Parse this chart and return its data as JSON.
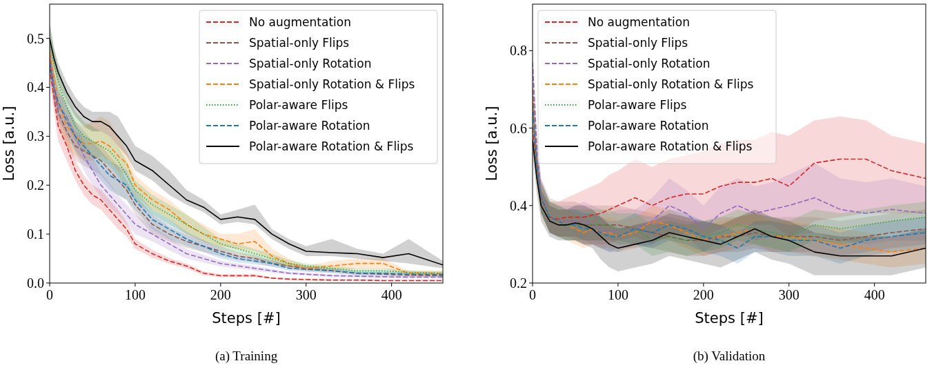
{
  "chart_data": [
    {
      "type": "line",
      "title": "(a) Training",
      "xlabel": "Steps [#]",
      "ylabel": "Loss [a.u.]",
      "xlim": [
        0,
        460
      ],
      "ylim": [
        0,
        0.57
      ],
      "xticks": [
        0,
        100,
        200,
        300,
        400
      ],
      "yticks": [
        {
          "value": 0,
          "label": "0.0"
        },
        0.1,
        0.2,
        0.3,
        0.4,
        0.5
      ],
      "legend": "top right",
      "x": [
        0,
        5,
        10,
        20,
        30,
        40,
        50,
        60,
        70,
        80,
        90,
        100,
        120,
        140,
        160,
        180,
        200,
        220,
        240,
        260,
        280,
        300,
        330,
        360,
        390,
        420,
        460
      ],
      "series": [
        {
          "name": "No augmentation",
          "color": "#d62728",
          "line_style": "dashed",
          "values": [
            0.44,
            0.38,
            0.32,
            0.28,
            0.23,
            0.2,
            0.18,
            0.17,
            0.15,
            0.13,
            0.11,
            0.08,
            0.06,
            0.045,
            0.035,
            0.02,
            0.015,
            0.015,
            0.015,
            0.01,
            0.008,
            0.007,
            0.006,
            0.006,
            0.005,
            0.005,
            0.005
          ],
          "lower": [
            0.41,
            0.35,
            0.29,
            0.25,
            0.21,
            0.18,
            0.16,
            0.15,
            0.13,
            0.11,
            0.095,
            0.07,
            0.052,
            0.039,
            0.03,
            0.016,
            0.012,
            0.012,
            0.012,
            0.008,
            0.006,
            0.005,
            0.004,
            0.004,
            0.003,
            0.003,
            0.003
          ],
          "upper": [
            0.47,
            0.41,
            0.35,
            0.31,
            0.25,
            0.22,
            0.2,
            0.19,
            0.17,
            0.15,
            0.125,
            0.09,
            0.068,
            0.051,
            0.04,
            0.024,
            0.018,
            0.018,
            0.018,
            0.012,
            0.01,
            0.009,
            0.008,
            0.008,
            0.007,
            0.007,
            0.007
          ]
        },
        {
          "name": "Spatial-only Flips",
          "color": "#8c564b",
          "line_style": "dashed",
          "values": [
            0.47,
            0.4,
            0.35,
            0.31,
            0.28,
            0.27,
            0.26,
            0.25,
            0.23,
            0.21,
            0.19,
            0.16,
            0.12,
            0.1,
            0.085,
            0.075,
            0.065,
            0.055,
            0.05,
            0.04,
            0.035,
            0.03,
            0.025,
            0.02,
            0.018,
            0.016,
            0.015
          ],
          "lower": [
            0.44,
            0.37,
            0.32,
            0.28,
            0.25,
            0.24,
            0.23,
            0.22,
            0.2,
            0.18,
            0.17,
            0.14,
            0.1,
            0.085,
            0.072,
            0.063,
            0.055,
            0.047,
            0.042,
            0.034,
            0.03,
            0.025,
            0.021,
            0.017,
            0.015,
            0.013,
            0.012
          ],
          "upper": [
            0.5,
            0.43,
            0.38,
            0.34,
            0.31,
            0.3,
            0.29,
            0.28,
            0.26,
            0.24,
            0.21,
            0.18,
            0.14,
            0.115,
            0.098,
            0.087,
            0.075,
            0.063,
            0.058,
            0.046,
            0.04,
            0.035,
            0.029,
            0.023,
            0.021,
            0.019,
            0.018
          ]
        },
        {
          "name": "Spatial-only Rotation",
          "color": "#9467bd",
          "line_style": "dashed",
          "values": [
            0.46,
            0.4,
            0.36,
            0.34,
            0.3,
            0.26,
            0.23,
            0.2,
            0.18,
            0.16,
            0.14,
            0.12,
            0.1,
            0.08,
            0.06,
            0.05,
            0.04,
            0.035,
            0.03,
            0.025,
            0.02,
            0.018,
            0.015,
            0.014,
            0.013,
            0.012,
            0.012
          ],
          "lower": [
            0.43,
            0.37,
            0.33,
            0.31,
            0.27,
            0.23,
            0.2,
            0.175,
            0.155,
            0.14,
            0.12,
            0.1,
            0.085,
            0.067,
            0.05,
            0.042,
            0.034,
            0.03,
            0.025,
            0.021,
            0.017,
            0.015,
            0.012,
            0.011,
            0.01,
            0.01,
            0.01
          ],
          "upper": [
            0.49,
            0.43,
            0.39,
            0.37,
            0.33,
            0.29,
            0.26,
            0.225,
            0.205,
            0.18,
            0.16,
            0.14,
            0.115,
            0.093,
            0.07,
            0.058,
            0.046,
            0.04,
            0.035,
            0.029,
            0.023,
            0.021,
            0.018,
            0.017,
            0.016,
            0.014,
            0.014
          ]
        },
        {
          "name": "Spatial-only Rotation & Flips",
          "color": "#ff7f0e",
          "line_style": "dashed",
          "values": [
            0.47,
            0.42,
            0.37,
            0.32,
            0.3,
            0.285,
            0.285,
            0.29,
            0.28,
            0.26,
            0.245,
            0.2,
            0.17,
            0.15,
            0.12,
            0.1,
            0.09,
            0.08,
            0.085,
            0.055,
            0.04,
            0.03,
            0.035,
            0.04,
            0.04,
            0.02,
            0.02
          ],
          "lower": [
            0.43,
            0.38,
            0.33,
            0.28,
            0.26,
            0.25,
            0.25,
            0.26,
            0.25,
            0.23,
            0.22,
            0.18,
            0.15,
            0.13,
            0.1,
            0.085,
            0.075,
            0.07,
            0.065,
            0.045,
            0.03,
            0.025,
            0.025,
            0.03,
            0.03,
            0.015,
            0.015
          ],
          "upper": [
            0.51,
            0.46,
            0.41,
            0.36,
            0.33,
            0.32,
            0.33,
            0.34,
            0.33,
            0.3,
            0.27,
            0.22,
            0.19,
            0.17,
            0.14,
            0.12,
            0.1,
            0.1,
            0.11,
            0.07,
            0.05,
            0.035,
            0.045,
            0.05,
            0.05,
            0.025,
            0.025
          ]
        },
        {
          "name": "Polar-aware Flips",
          "color": "#2ca02c",
          "line_style": "dotted",
          "values": [
            0.5,
            0.45,
            0.41,
            0.36,
            0.32,
            0.3,
            0.29,
            0.28,
            0.27,
            0.25,
            0.22,
            0.19,
            0.16,
            0.14,
            0.12,
            0.1,
            0.08,
            0.07,
            0.06,
            0.05,
            0.04,
            0.035,
            0.03,
            0.025,
            0.025,
            0.022,
            0.02
          ],
          "lower": [
            0.47,
            0.42,
            0.38,
            0.33,
            0.29,
            0.27,
            0.26,
            0.25,
            0.24,
            0.22,
            0.19,
            0.17,
            0.14,
            0.12,
            0.1,
            0.085,
            0.07,
            0.06,
            0.05,
            0.04,
            0.033,
            0.03,
            0.025,
            0.02,
            0.02,
            0.018,
            0.016
          ],
          "upper": [
            0.53,
            0.48,
            0.44,
            0.39,
            0.35,
            0.33,
            0.32,
            0.31,
            0.3,
            0.28,
            0.25,
            0.21,
            0.18,
            0.16,
            0.14,
            0.115,
            0.09,
            0.08,
            0.07,
            0.06,
            0.047,
            0.04,
            0.035,
            0.03,
            0.03,
            0.026,
            0.024
          ]
        },
        {
          "name": "Polar-aware Rotation",
          "color": "#1f77b4",
          "line_style": "dashed",
          "values": [
            0.45,
            0.4,
            0.37,
            0.33,
            0.3,
            0.28,
            0.26,
            0.24,
            0.22,
            0.21,
            0.2,
            0.17,
            0.13,
            0.11,
            0.09,
            0.075,
            0.06,
            0.05,
            0.045,
            0.04,
            0.03,
            0.028,
            0.025,
            0.02,
            0.02,
            0.018,
            0.017
          ],
          "lower": [
            0.42,
            0.37,
            0.34,
            0.3,
            0.27,
            0.25,
            0.23,
            0.21,
            0.19,
            0.18,
            0.17,
            0.15,
            0.11,
            0.09,
            0.075,
            0.063,
            0.05,
            0.042,
            0.038,
            0.033,
            0.025,
            0.023,
            0.02,
            0.016,
            0.016,
            0.014,
            0.013
          ],
          "upper": [
            0.48,
            0.43,
            0.4,
            0.36,
            0.33,
            0.31,
            0.29,
            0.27,
            0.25,
            0.24,
            0.23,
            0.19,
            0.15,
            0.13,
            0.105,
            0.087,
            0.07,
            0.058,
            0.052,
            0.047,
            0.035,
            0.033,
            0.03,
            0.024,
            0.024,
            0.022,
            0.021
          ]
        },
        {
          "name": "Polar-aware Rotation & Flips",
          "color": "#000000",
          "line_style": "solid",
          "values": [
            0.5,
            0.46,
            0.43,
            0.39,
            0.36,
            0.34,
            0.33,
            0.33,
            0.32,
            0.3,
            0.28,
            0.25,
            0.23,
            0.2,
            0.17,
            0.155,
            0.13,
            0.135,
            0.13,
            0.1,
            0.08,
            0.065,
            0.062,
            0.06,
            0.052,
            0.06,
            0.037
          ],
          "lower": [
            0.48,
            0.44,
            0.41,
            0.37,
            0.34,
            0.32,
            0.31,
            0.31,
            0.3,
            0.28,
            0.26,
            0.23,
            0.21,
            0.18,
            0.16,
            0.145,
            0.12,
            0.125,
            0.12,
            0.09,
            0.07,
            0.055,
            0.055,
            0.05,
            0.045,
            0.04,
            0.03
          ],
          "upper": [
            0.53,
            0.48,
            0.45,
            0.41,
            0.38,
            0.36,
            0.35,
            0.35,
            0.35,
            0.34,
            0.31,
            0.28,
            0.26,
            0.23,
            0.19,
            0.17,
            0.14,
            0.15,
            0.16,
            0.11,
            0.09,
            0.075,
            0.09,
            0.07,
            0.06,
            0.09,
            0.045
          ]
        }
      ]
    },
    {
      "type": "line",
      "title": "(b) Validation",
      "xlabel": "Steps [#]",
      "ylabel": "Loss [a.u.]",
      "xlim": [
        0,
        460
      ],
      "ylim": [
        0.2,
        0.92
      ],
      "xticks": [
        0,
        100,
        200,
        300,
        400
      ],
      "yticks": [
        0.2,
        0.4,
        0.6,
        0.8
      ],
      "legend": "top left",
      "x": [
        0,
        5,
        10,
        20,
        30,
        40,
        50,
        60,
        70,
        80,
        90,
        100,
        120,
        140,
        160,
        180,
        200,
        220,
        240,
        260,
        280,
        300,
        330,
        360,
        390,
        420,
        460
      ],
      "series": [
        {
          "name": "No augmentation",
          "color": "#d62728",
          "line_style": "dashed",
          "values": [
            0.6,
            0.5,
            0.42,
            0.37,
            0.365,
            0.37,
            0.37,
            0.37,
            0.375,
            0.38,
            0.39,
            0.4,
            0.42,
            0.4,
            0.42,
            0.43,
            0.43,
            0.45,
            0.46,
            0.46,
            0.47,
            0.45,
            0.51,
            0.52,
            0.52,
            0.49,
            0.47
          ],
          "lower": [
            0.56,
            0.46,
            0.38,
            0.33,
            0.32,
            0.32,
            0.31,
            0.3,
            0.3,
            0.3,
            0.3,
            0.31,
            0.32,
            0.3,
            0.32,
            0.33,
            0.32,
            0.34,
            0.35,
            0.35,
            0.35,
            0.32,
            0.36,
            0.37,
            0.38,
            0.38,
            0.38
          ],
          "upper": [
            0.64,
            0.54,
            0.46,
            0.41,
            0.41,
            0.42,
            0.43,
            0.44,
            0.45,
            0.46,
            0.48,
            0.49,
            0.52,
            0.5,
            0.52,
            0.53,
            0.54,
            0.56,
            0.57,
            0.57,
            0.59,
            0.58,
            0.62,
            0.63,
            0.62,
            0.58,
            0.56
          ]
        },
        {
          "name": "Spatial-only Flips",
          "color": "#8c564b",
          "line_style": "dashed",
          "values": [
            0.7,
            0.52,
            0.42,
            0.37,
            0.36,
            0.36,
            0.36,
            0.35,
            0.35,
            0.35,
            0.35,
            0.35,
            0.34,
            0.33,
            0.32,
            0.31,
            0.31,
            0.32,
            0.32,
            0.33,
            0.32,
            0.32,
            0.32,
            0.31,
            0.32,
            0.33,
            0.34
          ],
          "lower": [
            0.66,
            0.48,
            0.38,
            0.33,
            0.32,
            0.32,
            0.32,
            0.31,
            0.31,
            0.31,
            0.31,
            0.31,
            0.3,
            0.29,
            0.28,
            0.27,
            0.27,
            0.28,
            0.28,
            0.29,
            0.28,
            0.28,
            0.28,
            0.27,
            0.28,
            0.29,
            0.3
          ],
          "upper": [
            0.75,
            0.57,
            0.47,
            0.42,
            0.41,
            0.41,
            0.41,
            0.4,
            0.4,
            0.4,
            0.4,
            0.4,
            0.39,
            0.38,
            0.37,
            0.36,
            0.36,
            0.37,
            0.37,
            0.38,
            0.37,
            0.37,
            0.37,
            0.36,
            0.37,
            0.38,
            0.39
          ]
        },
        {
          "name": "Spatial-only Rotation",
          "color": "#9467bd",
          "line_style": "dashed",
          "values": [
            0.77,
            0.55,
            0.43,
            0.37,
            0.36,
            0.36,
            0.36,
            0.36,
            0.35,
            0.34,
            0.33,
            0.34,
            0.34,
            0.36,
            0.4,
            0.38,
            0.34,
            0.38,
            0.4,
            0.38,
            0.39,
            0.4,
            0.42,
            0.39,
            0.38,
            0.39,
            0.38
          ],
          "lower": [
            0.73,
            0.51,
            0.39,
            0.33,
            0.32,
            0.32,
            0.32,
            0.31,
            0.3,
            0.29,
            0.28,
            0.29,
            0.29,
            0.3,
            0.33,
            0.32,
            0.28,
            0.31,
            0.33,
            0.31,
            0.32,
            0.32,
            0.33,
            0.31,
            0.3,
            0.31,
            0.31
          ],
          "upper": [
            0.81,
            0.59,
            0.47,
            0.41,
            0.4,
            0.4,
            0.4,
            0.41,
            0.4,
            0.39,
            0.38,
            0.39,
            0.39,
            0.42,
            0.47,
            0.44,
            0.4,
            0.45,
            0.47,
            0.45,
            0.46,
            0.48,
            0.51,
            0.47,
            0.46,
            0.47,
            0.45
          ]
        },
        {
          "name": "Spatial-only Rotation & Flips",
          "color": "#ff7f0e",
          "line_style": "dashed",
          "values": [
            0.68,
            0.5,
            0.42,
            0.37,
            0.36,
            0.35,
            0.34,
            0.33,
            0.34,
            0.33,
            0.33,
            0.32,
            0.33,
            0.36,
            0.35,
            0.33,
            0.31,
            0.32,
            0.33,
            0.34,
            0.32,
            0.32,
            0.31,
            0.3,
            0.29,
            0.28,
            0.29
          ],
          "lower": [
            0.64,
            0.46,
            0.38,
            0.33,
            0.32,
            0.31,
            0.3,
            0.29,
            0.3,
            0.29,
            0.29,
            0.28,
            0.29,
            0.32,
            0.31,
            0.29,
            0.27,
            0.28,
            0.29,
            0.3,
            0.28,
            0.28,
            0.27,
            0.26,
            0.25,
            0.24,
            0.25
          ],
          "upper": [
            0.72,
            0.54,
            0.46,
            0.41,
            0.4,
            0.39,
            0.38,
            0.37,
            0.38,
            0.37,
            0.37,
            0.36,
            0.37,
            0.4,
            0.39,
            0.37,
            0.35,
            0.36,
            0.37,
            0.38,
            0.36,
            0.36,
            0.35,
            0.34,
            0.33,
            0.32,
            0.33
          ]
        },
        {
          "name": "Polar-aware Flips",
          "color": "#2ca02c",
          "line_style": "dotted",
          "values": [
            0.65,
            0.5,
            0.42,
            0.37,
            0.36,
            0.35,
            0.35,
            0.35,
            0.35,
            0.35,
            0.35,
            0.34,
            0.34,
            0.31,
            0.32,
            0.31,
            0.32,
            0.33,
            0.35,
            0.34,
            0.33,
            0.32,
            0.35,
            0.34,
            0.35,
            0.36,
            0.37
          ],
          "lower": [
            0.61,
            0.46,
            0.38,
            0.33,
            0.32,
            0.31,
            0.31,
            0.31,
            0.31,
            0.31,
            0.31,
            0.3,
            0.3,
            0.27,
            0.28,
            0.27,
            0.28,
            0.29,
            0.31,
            0.3,
            0.29,
            0.28,
            0.31,
            0.3,
            0.31,
            0.32,
            0.33
          ],
          "upper": [
            0.69,
            0.54,
            0.46,
            0.41,
            0.4,
            0.39,
            0.39,
            0.39,
            0.39,
            0.39,
            0.39,
            0.38,
            0.38,
            0.35,
            0.36,
            0.35,
            0.36,
            0.37,
            0.39,
            0.38,
            0.37,
            0.36,
            0.39,
            0.38,
            0.39,
            0.4,
            0.41
          ]
        },
        {
          "name": "Polar-aware Rotation",
          "color": "#1f77b4",
          "line_style": "dashed",
          "values": [
            0.66,
            0.5,
            0.42,
            0.37,
            0.36,
            0.35,
            0.35,
            0.34,
            0.34,
            0.33,
            0.32,
            0.32,
            0.34,
            0.33,
            0.35,
            0.34,
            0.32,
            0.31,
            0.29,
            0.32,
            0.32,
            0.31,
            0.31,
            0.29,
            0.31,
            0.32,
            0.33
          ],
          "lower": [
            0.62,
            0.46,
            0.38,
            0.33,
            0.32,
            0.31,
            0.31,
            0.3,
            0.3,
            0.29,
            0.28,
            0.28,
            0.3,
            0.29,
            0.31,
            0.3,
            0.28,
            0.27,
            0.25,
            0.28,
            0.28,
            0.27,
            0.27,
            0.25,
            0.27,
            0.28,
            0.29
          ],
          "upper": [
            0.7,
            0.54,
            0.46,
            0.41,
            0.4,
            0.39,
            0.39,
            0.38,
            0.38,
            0.37,
            0.36,
            0.36,
            0.38,
            0.37,
            0.39,
            0.38,
            0.36,
            0.35,
            0.33,
            0.36,
            0.36,
            0.35,
            0.35,
            0.33,
            0.35,
            0.36,
            0.37
          ]
        },
        {
          "name": "Polar-aware Rotation & Flips",
          "color": "#000000",
          "line_style": "solid",
          "values": [
            0.57,
            0.47,
            0.4,
            0.36,
            0.35,
            0.35,
            0.355,
            0.35,
            0.34,
            0.32,
            0.3,
            0.29,
            0.3,
            0.31,
            0.33,
            0.32,
            0.31,
            0.3,
            0.32,
            0.34,
            0.32,
            0.31,
            0.28,
            0.27,
            0.27,
            0.27,
            0.29
          ],
          "lower": [
            0.53,
            0.43,
            0.36,
            0.32,
            0.31,
            0.31,
            0.31,
            0.3,
            0.29,
            0.26,
            0.24,
            0.23,
            0.24,
            0.25,
            0.27,
            0.26,
            0.25,
            0.24,
            0.26,
            0.28,
            0.26,
            0.25,
            0.22,
            0.22,
            0.22,
            0.22,
            0.24
          ],
          "upper": [
            0.61,
            0.51,
            0.44,
            0.4,
            0.39,
            0.39,
            0.4,
            0.4,
            0.39,
            0.37,
            0.35,
            0.34,
            0.35,
            0.36,
            0.38,
            0.37,
            0.36,
            0.35,
            0.37,
            0.39,
            0.37,
            0.36,
            0.33,
            0.32,
            0.32,
            0.32,
            0.34
          ]
        }
      ]
    }
  ]
}
